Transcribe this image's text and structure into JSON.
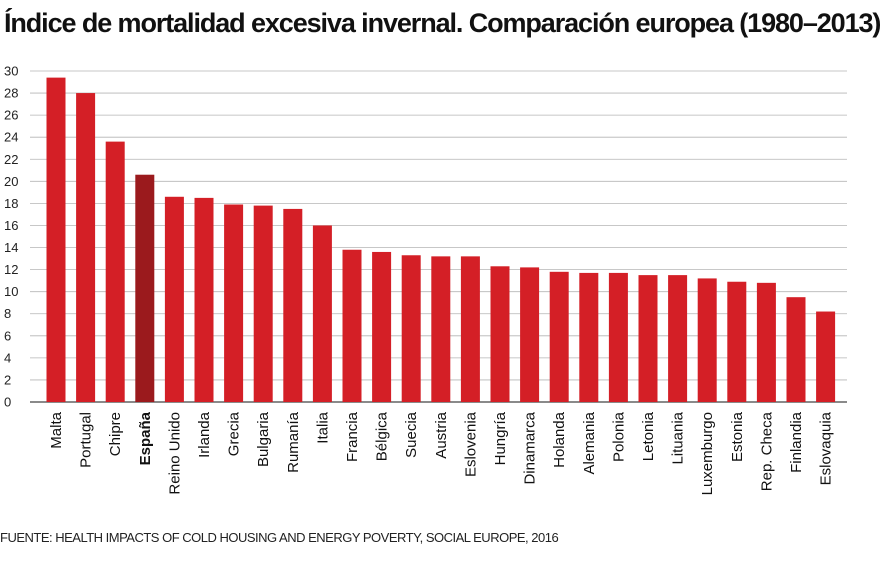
{
  "chart_data": {
    "type": "bar",
    "title": "Índice de mortalidad excesiva invernal. Comparación europea (1980–2013)",
    "source": "FUENTE: HEALTH IMPACTS OF COLD HOUSING AND ENERGY POVERTY, SOCIAL EUROPE, 2016",
    "categories": [
      "Malta",
      "Portugal",
      "Chipre",
      "España",
      "Reino Unido",
      "Irlanda",
      "Grecia",
      "Bulgaria",
      "Rumanía",
      "Italia",
      "Francia",
      "Bélgica",
      "Suecia",
      "Austria",
      "Eslovenia",
      "Hungría",
      "Dinamarca",
      "Holanda",
      "Alemania",
      "Polonia",
      "Letonia",
      "Lituania",
      "Luxemburgo",
      "Estonia",
      "Rep. Checa",
      "Finlandia",
      "Eslovaquia"
    ],
    "values": [
      29.4,
      28.0,
      23.6,
      20.6,
      18.6,
      18.5,
      17.9,
      17.8,
      17.5,
      16.0,
      13.8,
      13.6,
      13.3,
      13.2,
      13.2,
      12.3,
      12.2,
      11.8,
      11.7,
      11.7,
      11.5,
      11.5,
      11.2,
      10.9,
      10.8,
      9.5,
      8.2
    ],
    "highlight": "España",
    "ylim": [
      0,
      30
    ],
    "yticks": [
      0,
      2,
      4,
      6,
      8,
      10,
      12,
      14,
      16,
      18,
      20,
      22,
      24,
      26,
      28,
      30
    ],
    "xlabel": "",
    "ylabel": "",
    "grid": true,
    "colors": {
      "bar": "#d41f26",
      "highlight": "#9b1a1d",
      "grid": "#b5b5b5"
    }
  }
}
